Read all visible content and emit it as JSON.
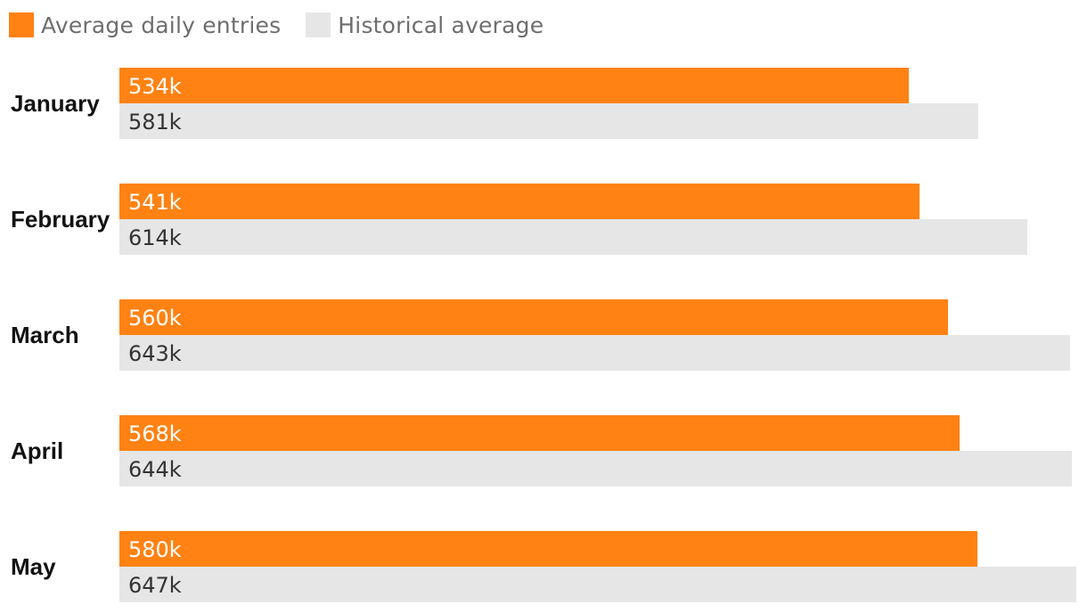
{
  "legend": {
    "primary_label": "Average daily entries",
    "secondary_label": "Historical average"
  },
  "colors": {
    "primary": "#ff8213",
    "secondary": "#e6e6e6",
    "primary_text": "#ffffff",
    "secondary_text": "#333333",
    "category_text": "#121212"
  },
  "chart_data": {
    "type": "bar",
    "orientation": "horizontal",
    "categories": [
      "January",
      "February",
      "March",
      "April",
      "May"
    ],
    "series": [
      {
        "name": "Average daily entries",
        "values": [
          534,
          541,
          560,
          568,
          580
        ],
        "labels": [
          "534k",
          "541k",
          "560k",
          "568k",
          "580k"
        ]
      },
      {
        "name": "Historical average",
        "values": [
          581,
          614,
          643,
          644,
          647
        ],
        "labels": [
          "581k",
          "614k",
          "643k",
          "644k",
          "647k"
        ]
      }
    ],
    "xlim": [
      0,
      647
    ],
    "grid": false,
    "legend_position": "top-left"
  }
}
